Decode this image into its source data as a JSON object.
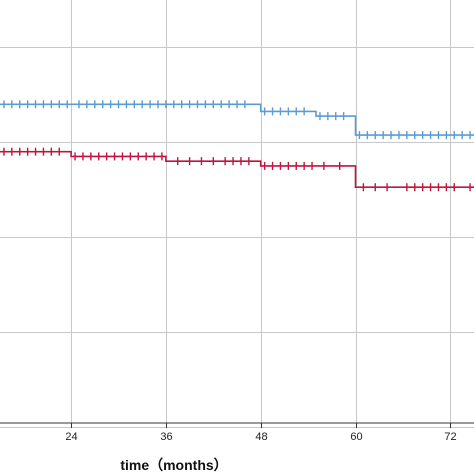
{
  "chart_data": {
    "type": "line",
    "step": true,
    "censor_marks": true,
    "title": "",
    "xlabel": "time（months）",
    "ylabel": "",
    "xlim": [
      15,
      75
    ],
    "ylim": [
      0.0,
      1.0
    ],
    "xticks": [
      24,
      36,
      48,
      60,
      72
    ],
    "x_gridlines": [
      24,
      36,
      48,
      60,
      72
    ],
    "y_gridlines": [
      0.1,
      0.3,
      0.5,
      0.7,
      0.9
    ],
    "grid": true,
    "series": [
      {
        "color": "#5b9bd5",
        "steps": [
          [
            15,
            0.78
          ],
          [
            48,
            0.765
          ],
          [
            55,
            0.755
          ],
          [
            60,
            0.715
          ],
          [
            75,
            0.715
          ]
        ],
        "censored_x": [
          15.5,
          16.5,
          17.5,
          18.5,
          19.5,
          20.5,
          21.5,
          22.5,
          23.5,
          25,
          26,
          27,
          28,
          29,
          30,
          31,
          32,
          33,
          34,
          35,
          36,
          37,
          38,
          39,
          40,
          41,
          42,
          43,
          44,
          45,
          46,
          48.5,
          49.5,
          50.5,
          51.5,
          52.5,
          53.5,
          55.5,
          56.5,
          57.5,
          58.5,
          60.5,
          61.5,
          62.5,
          63.5,
          64.5,
          65.5,
          66.5,
          67.5,
          68.5,
          69.5,
          70.5,
          71.5,
          72.5,
          73.5,
          74.5
        ]
      },
      {
        "color": "#c0143c",
        "steps": [
          [
            15,
            0.68
          ],
          [
            24,
            0.67
          ],
          [
            36,
            0.66
          ],
          [
            48,
            0.65
          ],
          [
            60,
            0.605
          ],
          [
            75,
            0.605
          ]
        ],
        "censored_x": [
          15.5,
          16.5,
          17.5,
          18.5,
          19.5,
          20.5,
          21.5,
          22.5,
          24.5,
          25.5,
          26.5,
          27.5,
          28.5,
          29.5,
          30.5,
          31.5,
          32.5,
          33.5,
          34.5,
          35.5,
          37.5,
          39,
          40.5,
          42,
          43.5,
          44.5,
          45.5,
          46.5,
          48.5,
          49.5,
          50.5,
          51.5,
          52.5,
          53.5,
          54.5,
          56,
          58,
          61,
          62.5,
          64,
          66.5,
          67.5,
          68.5,
          69.5,
          70.5,
          71.5,
          72.5,
          74.5
        ]
      }
    ]
  }
}
